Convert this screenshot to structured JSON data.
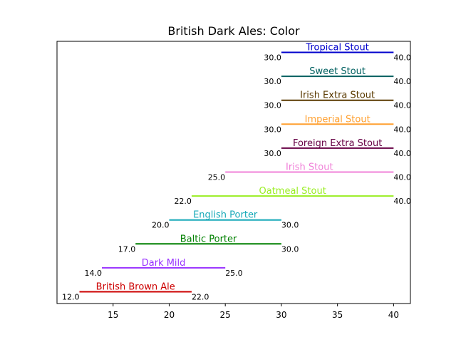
{
  "chart_data": {
    "type": "bar",
    "title": "British Dark Ales: Color",
    "xlabel": "",
    "ylabel": "",
    "xlim": [
      10.0,
      41.5
    ],
    "xticks": [
      15,
      20,
      25,
      30,
      35,
      40
    ],
    "tick_labels": [
      "15",
      "20",
      "25",
      "30",
      "35",
      "40"
    ],
    "grid": false,
    "series": [
      {
        "name": "British Brown Ale",
        "low": 12.0,
        "high": 22.0,
        "low_label": "12.0",
        "high_label": "22.0",
        "color": "#cc0000"
      },
      {
        "name": "Dark Mild",
        "low": 14.0,
        "high": 25.0,
        "low_label": "14.0",
        "high_label": "25.0",
        "color": "#9933ff"
      },
      {
        "name": "Baltic Porter",
        "low": 17.0,
        "high": 30.0,
        "low_label": "17.0",
        "high_label": "30.0",
        "color": "#008000"
      },
      {
        "name": "English Porter",
        "low": 20.0,
        "high": 30.0,
        "low_label": "20.0",
        "high_label": "30.0",
        "color": "#17a9b8"
      },
      {
        "name": "Oatmeal Stout",
        "low": 22.0,
        "high": 40.0,
        "low_label": "22.0",
        "high_label": "40.0",
        "color": "#99ee22"
      },
      {
        "name": "Irish Stout",
        "low": 25.0,
        "high": 40.0,
        "low_label": "25.0",
        "high_label": "40.0",
        "color": "#f080d8"
      },
      {
        "name": "Foreign Extra Stout",
        "low": 30.0,
        "high": 40.0,
        "low_label": "30.0",
        "high_label": "40.0",
        "color": "#660044"
      },
      {
        "name": "Imperial Stout",
        "low": 30.0,
        "high": 40.0,
        "low_label": "30.0",
        "high_label": "40.0",
        "color": "#ffa030"
      },
      {
        "name": "Irish Extra Stout",
        "low": 30.0,
        "high": 40.0,
        "low_label": "30.0",
        "high_label": "40.0",
        "color": "#5a3a00"
      },
      {
        "name": "Sweet Stout",
        "low": 30.0,
        "high": 40.0,
        "low_label": "30.0",
        "high_label": "40.0",
        "color": "#006060"
      },
      {
        "name": "Tropical Stout",
        "low": 30.0,
        "high": 40.0,
        "low_label": "30.0",
        "high_label": "40.0",
        "color": "#0000cc"
      }
    ]
  }
}
